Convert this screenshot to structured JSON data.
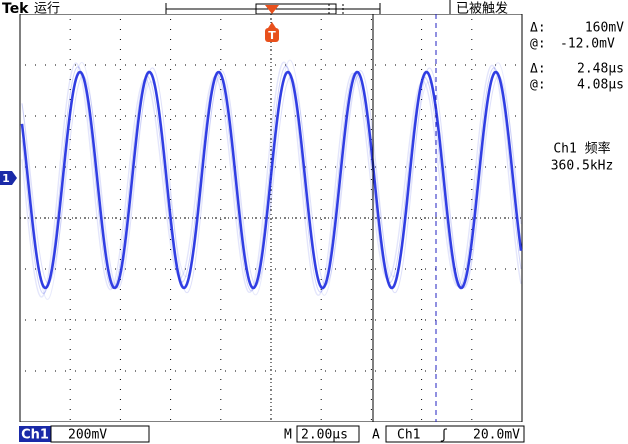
{
  "header": {
    "brand": "Tek",
    "status": "运行",
    "trigger_state": "已被触发",
    "trigger_marker": "T"
  },
  "channel_marker": "1",
  "readouts": {
    "voltage_delta_label": "Δ:",
    "voltage_delta": "160mV",
    "voltage_at_label": "@:",
    "voltage_at": "-12.0mV",
    "time_delta_label": "Δ:",
    "time_delta": "2.48µs",
    "time_at_label": "@:",
    "time_at": "4.08µs",
    "measurement_label": "Ch1 频率",
    "measurement_value": "360.5kHz"
  },
  "footer": {
    "channel": "Ch1",
    "scale": "200mV",
    "timebase_label": "M",
    "timebase": "2.00µs",
    "trigger_label": "A",
    "trigger_source": "Ch1",
    "trigger_slope": "ʃ",
    "trigger_level": "20.0mV"
  }
}
